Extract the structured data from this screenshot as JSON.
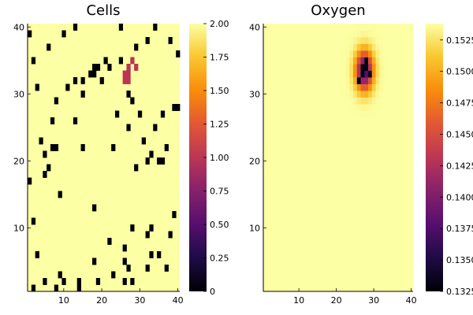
{
  "chart_data": [
    {
      "type": "heatmap",
      "title": "Cells",
      "grid_size": [
        40,
        40
      ],
      "xlim": [
        0.5,
        40.5
      ],
      "ylim": [
        0.5,
        40.5
      ],
      "xticks": [
        10,
        20,
        30,
        40
      ],
      "xtick_labels": [
        "10",
        "20",
        "30",
        "40"
      ],
      "yticks": [
        10,
        20,
        30,
        40
      ],
      "ytick_labels": [
        "10",
        "20",
        "30",
        "40"
      ],
      "background_value": 2,
      "cells_value_0": [
        [
          2,
          1
        ],
        [
          8,
          1
        ],
        [
          14,
          1
        ],
        [
          5,
          2
        ],
        [
          10,
          2
        ],
        [
          14,
          2
        ],
        [
          19,
          2
        ],
        [
          26,
          2
        ],
        [
          28,
          2
        ],
        [
          9,
          3
        ],
        [
          23,
          3
        ],
        [
          27,
          4
        ],
        [
          32,
          4
        ],
        [
          37,
          4
        ],
        [
          18,
          5
        ],
        [
          26,
          5
        ],
        [
          3,
          6
        ],
        [
          33,
          6
        ],
        [
          35,
          6
        ],
        [
          26,
          7
        ],
        [
          22,
          8
        ],
        [
          32,
          9
        ],
        [
          38,
          9
        ],
        [
          28,
          10
        ],
        [
          33,
          10
        ],
        [
          2,
          11
        ],
        [
          39,
          12
        ],
        [
          18,
          13
        ],
        [
          9,
          15
        ],
        [
          1,
          17
        ],
        [
          5,
          18
        ],
        [
          6,
          19
        ],
        [
          29,
          19
        ],
        [
          32,
          20
        ],
        [
          35,
          20
        ],
        [
          36,
          20
        ],
        [
          33,
          21
        ],
        [
          5,
          21
        ],
        [
          7,
          22
        ],
        [
          8,
          22
        ],
        [
          15,
          22
        ],
        [
          23,
          22
        ],
        [
          37,
          22
        ],
        [
          4,
          23
        ],
        [
          31,
          23
        ],
        [
          27,
          25
        ],
        [
          34,
          25
        ],
        [
          7,
          26
        ],
        [
          13,
          26
        ],
        [
          24,
          27
        ],
        [
          30,
          27
        ],
        [
          36,
          27
        ],
        [
          39,
          28
        ],
        [
          40,
          28
        ],
        [
          8,
          29
        ],
        [
          28,
          29
        ],
        [
          15,
          30
        ],
        [
          27,
          30
        ],
        [
          3,
          31
        ],
        [
          11,
          31
        ],
        [
          13,
          32
        ],
        [
          15,
          32
        ],
        [
          20,
          32
        ],
        [
          17,
          33
        ],
        [
          18,
          33
        ],
        [
          18,
          34
        ],
        [
          19,
          34
        ],
        [
          22,
          34
        ],
        [
          2,
          35
        ],
        [
          21,
          35
        ],
        [
          25,
          35
        ],
        [
          40,
          36
        ],
        [
          6,
          37
        ],
        [
          29,
          37
        ],
        [
          32,
          38
        ],
        [
          38,
          38
        ],
        [
          1,
          39
        ],
        [
          10,
          39
        ],
        [
          13,
          40
        ],
        [
          24,
          41
        ],
        [
          25,
          41
        ],
        [
          31,
          41
        ],
        [
          34,
          40
        ],
        [
          34,
          41
        ],
        [
          25,
          40
        ]
      ],
      "cells_value_1": [
        [
          28,
          35
        ],
        [
          27,
          34
        ],
        [
          29,
          34
        ],
        [
          26,
          33
        ],
        [
          27,
          33
        ],
        [
          26,
          32
        ],
        [
          27,
          32
        ]
      ],
      "colorbar": {
        "range": [
          0,
          2
        ],
        "ticks": [
          0,
          0.25,
          0.5,
          0.75,
          1.0,
          1.25,
          1.5,
          1.75,
          2.0
        ],
        "tick_labels": [
          "0",
          "0.25",
          "0.50",
          "0.75",
          "1.00",
          "1.25",
          "1.50",
          "1.75",
          "2.00"
        ]
      }
    },
    {
      "type": "heatmap",
      "title": "Oxygen",
      "grid_size": [
        40,
        40
      ],
      "xlim": [
        0.5,
        40.5
      ],
      "ylim": [
        0.5,
        40.5
      ],
      "xticks": [
        10,
        20,
        30,
        40
      ],
      "xtick_labels": [
        "10",
        "20",
        "30",
        "40"
      ],
      "yticks": [
        10,
        20,
        30,
        40
      ],
      "ytick_labels": [
        "10",
        "20",
        "30",
        "40"
      ],
      "background_value": 0.1538,
      "field_min": 0.1325,
      "hotspot_center": [
        27.5,
        33.5
      ],
      "hotspot_spread": 1.6,
      "hotspot_lowest": [
        [
          26,
          32
        ],
        [
          27,
          33
        ],
        [
          28,
          35
        ],
        [
          28,
          34
        ],
        [
          27,
          34
        ],
        [
          29,
          33
        ]
      ],
      "colorbar": {
        "range": [
          0.1325,
          0.1538
        ],
        "ticks": [
          0.1325,
          0.135,
          0.1375,
          0.14,
          0.1425,
          0.145,
          0.1475,
          0.15,
          0.1525
        ],
        "tick_labels": [
          "0.1325",
          "0.1350",
          "0.1375",
          "0.1400",
          "0.1425",
          "0.1450",
          "0.1475",
          "0.1500",
          "0.1525"
        ]
      }
    }
  ]
}
